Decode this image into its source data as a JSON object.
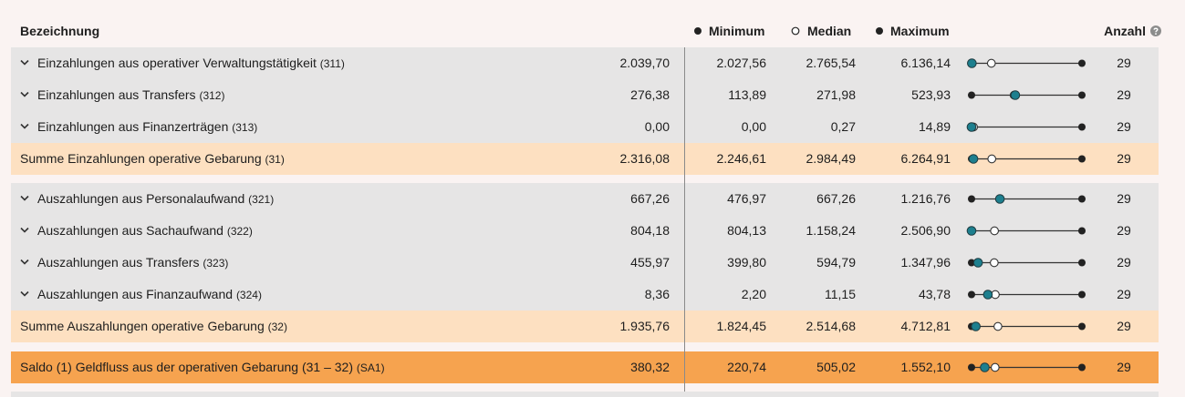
{
  "header": {
    "name": "Bezeichnung",
    "minimum": "Minimum",
    "median": "Median",
    "maximum": "Maximum",
    "count": "Anzahl"
  },
  "groups": [
    {
      "rows": [
        {
          "label": "Einzahlungen aus operativer Verwaltungstätigkeit",
          "code": "(311)",
          "style": "detail",
          "expandable": true,
          "value": {
            "value": 2039.7,
            "label": "2.039,70"
          },
          "min": {
            "value": 2027.56,
            "label": "2.027,56"
          },
          "median": {
            "value": 2765.54,
            "label": "2.765,54"
          },
          "max": {
            "value": 6136.14,
            "label": "6.136,14"
          },
          "count": 29
        },
        {
          "label": "Einzahlungen aus Transfers",
          "code": "(312)",
          "style": "detail",
          "expandable": true,
          "value": {
            "value": 276.38,
            "label": "276,38"
          },
          "min": {
            "value": 113.89,
            "label": "113,89"
          },
          "median": {
            "value": 271.98,
            "label": "271,98"
          },
          "max": {
            "value": 523.93,
            "label": "523,93"
          },
          "count": 29
        },
        {
          "label": "Einzahlungen aus Finanzerträgen",
          "code": "(313)",
          "style": "detail",
          "expandable": true,
          "value": {
            "value": 0,
            "label": "0,00"
          },
          "min": {
            "value": 0,
            "label": "0,00"
          },
          "median": {
            "value": 0.27,
            "label": "0,27"
          },
          "max": {
            "value": 14.89,
            "label": "14,89"
          },
          "count": 29
        },
        {
          "label": "Summe Einzahlungen operative Gebarung",
          "code": "(31)",
          "style": "sum",
          "expandable": false,
          "value": {
            "value": 2316.08,
            "label": "2.316,08"
          },
          "min": {
            "value": 2246.61,
            "label": "2.246,61"
          },
          "median": {
            "value": 2984.49,
            "label": "2.984,49"
          },
          "max": {
            "value": 6264.91,
            "label": "6.264,91"
          },
          "count": 29
        }
      ]
    },
    {
      "rows": [
        {
          "label": "Auszahlungen aus Personalaufwand",
          "code": "(321)",
          "style": "detail",
          "expandable": true,
          "value": {
            "value": 667.26,
            "label": "667,26"
          },
          "min": {
            "value": 476.97,
            "label": "476,97"
          },
          "median": {
            "value": 667.26,
            "label": "667,26"
          },
          "max": {
            "value": 1216.76,
            "label": "1.216,76"
          },
          "count": 29
        },
        {
          "label": "Auszahlungen aus Sachaufwand",
          "code": "(322)",
          "style": "detail",
          "expandable": true,
          "value": {
            "value": 804.18,
            "label": "804,18"
          },
          "min": {
            "value": 804.13,
            "label": "804,13"
          },
          "median": {
            "value": 1158.24,
            "label": "1.158,24"
          },
          "max": {
            "value": 2506.9,
            "label": "2.506,90"
          },
          "count": 29
        },
        {
          "label": "Auszahlungen aus Transfers",
          "code": "(323)",
          "style": "detail",
          "expandable": true,
          "value": {
            "value": 455.97,
            "label": "455,97"
          },
          "min": {
            "value": 399.8,
            "label": "399,80"
          },
          "median": {
            "value": 594.79,
            "label": "594,79"
          },
          "max": {
            "value": 1347.96,
            "label": "1.347,96"
          },
          "count": 29
        },
        {
          "label": "Auszahlungen aus Finanzaufwand",
          "code": "(324)",
          "style": "detail",
          "expandable": true,
          "value": {
            "value": 8.36,
            "label": "8,36"
          },
          "min": {
            "value": 2.2,
            "label": "2,20"
          },
          "median": {
            "value": 11.15,
            "label": "11,15"
          },
          "max": {
            "value": 43.78,
            "label": "43,78"
          },
          "count": 29
        },
        {
          "label": "Summe Auszahlungen operative Gebarung",
          "code": "(32)",
          "style": "sum",
          "expandable": false,
          "value": {
            "value": 1935.76,
            "label": "1.935,76"
          },
          "min": {
            "value": 1824.45,
            "label": "1.824,45"
          },
          "median": {
            "value": 2514.68,
            "label": "2.514,68"
          },
          "max": {
            "value": 4712.81,
            "label": "4.712,81"
          },
          "count": 29
        }
      ]
    },
    {
      "rows": [
        {
          "label": "Saldo (1) Geldfluss aus der operativen Gebarung (31 – 32)",
          "code": "(SA1)",
          "style": "saldo",
          "expandable": false,
          "value": {
            "value": 380.32,
            "label": "380,32"
          },
          "min": {
            "value": 220.74,
            "label": "220,74"
          },
          "median": {
            "value": 505.02,
            "label": "505,02"
          },
          "max": {
            "value": 1552.1,
            "label": "1.552,10"
          },
          "count": 29
        }
      ]
    }
  ]
}
